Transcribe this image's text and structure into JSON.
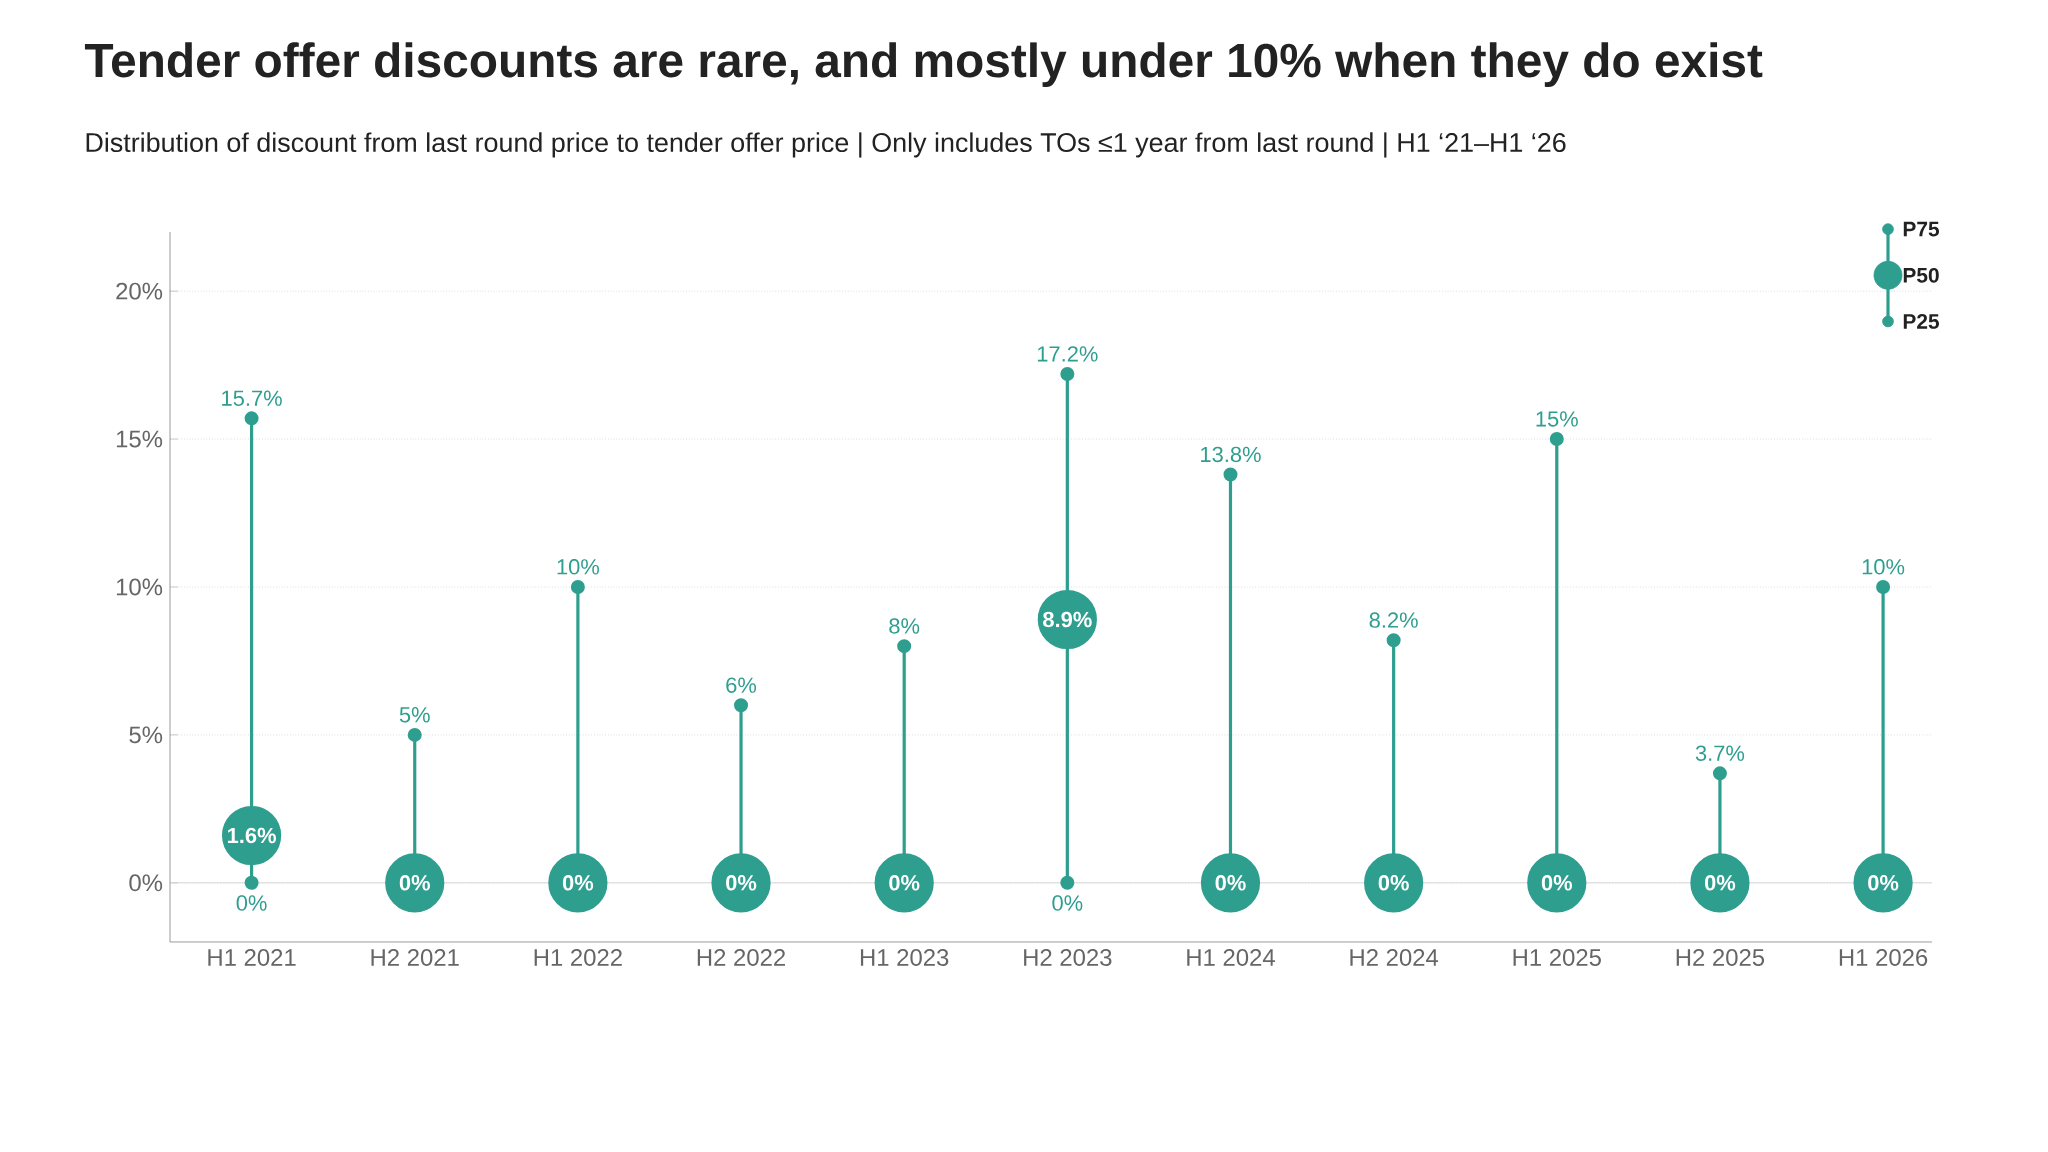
{
  "chart_data": {
    "type": "scatter",
    "title": "Tender offer discounts are rare, and mostly under 10% when they do exist",
    "subtitle": "Distribution of discount from last round price to tender offer price | Only includes TOs ≤1 year from last round | H1 ‘21–H1 ‘26",
    "categories": [
      "H1 2021",
      "H2 2021",
      "H1 2022",
      "H2 2022",
      "H1 2023",
      "H2 2023",
      "H1 2024",
      "H2 2024",
      "H1 2025",
      "H2 2025",
      "H1 2026"
    ],
    "series": [
      {
        "name": "P75",
        "type": "lollipop",
        "color": "#2e9e8f",
        "values": [
          15.7,
          5,
          10,
          6,
          8,
          17.2,
          13.8,
          8.2,
          15,
          3.7,
          10
        ],
        "value_labels": [
          "15.7%",
          "5%",
          "10%",
          "6%",
          "8%",
          "17.2%",
          "13.8%",
          "8.2%",
          "15%",
          "3.7%",
          "10%"
        ]
      },
      {
        "name": "P50",
        "color": "#2e9e8f",
        "values": [
          1.6,
          0,
          0,
          0,
          0,
          8.9,
          0,
          0,
          0,
          0,
          0
        ],
        "value_labels": [
          "1.6%",
          "0%",
          "0%",
          "0%",
          "0%",
          "8.9%",
          "0%",
          "0%",
          "0%",
          "0%",
          "0%"
        ]
      },
      {
        "name": "P25",
        "color": "#2e9e8f",
        "values": [
          0,
          null,
          null,
          null,
          null,
          0,
          null,
          null,
          null,
          null,
          null
        ],
        "value_labels": [
          "0%",
          null,
          null,
          null,
          null,
          "0%",
          null,
          null,
          null,
          null,
          null
        ]
      }
    ],
    "ylim": [
      -2,
      22
    ],
    "yticks": [
      {
        "value": 0,
        "label": "0%"
      },
      {
        "value": 5,
        "label": "5%"
      },
      {
        "value": 10,
        "label": "10%"
      },
      {
        "value": 15,
        "label": "15%"
      },
      {
        "value": 20,
        "label": "20%"
      }
    ],
    "grid": "y",
    "legend": "top right",
    "marker": "circle",
    "line_style": "solid",
    "ref_lines": [
      {
        "axis": "y",
        "value": 0,
        "color": "#cfcfcf"
      }
    ]
  }
}
